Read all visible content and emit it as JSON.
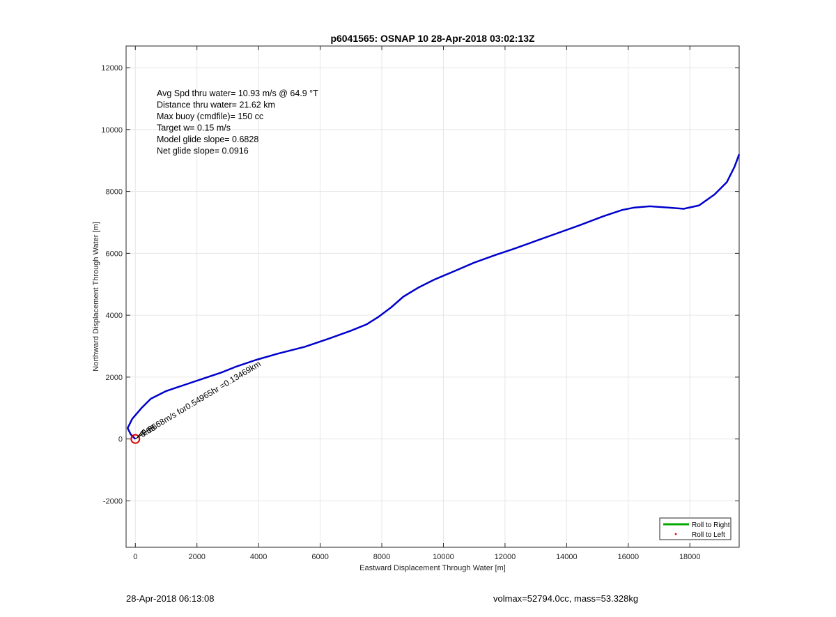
{
  "chart_data": {
    "type": "line",
    "title": "p6041565: OSNAP 10 28-Apr-2018 03:02:13Z",
    "xlabel": "Eastward Displacement Through Water [m]",
    "ylabel": "Northward Displacement Through Water [m]",
    "xlim": [
      -300,
      19600
    ],
    "ylim": [
      -3500,
      12700
    ],
    "xticks": [
      0,
      2000,
      4000,
      6000,
      8000,
      10000,
      12000,
      14000,
      16000,
      18000
    ],
    "yticks": [
      -2000,
      0,
      2000,
      4000,
      6000,
      8000,
      10000,
      12000
    ],
    "grid": true,
    "annotations": [
      "Avg Spd thru water= 10.93 m/s @  64.9 °T",
      "Distance thru water= 21.62 km",
      "Max buoy (cmdfile)= 150 cc",
      "Target w= 0.15 m/s",
      "Model glide slope= 0.6828",
      "Net glide slope= 0.0916"
    ],
    "rotated_label": "0.0668m/s for0.54965hr =0.13469km",
    "overlap_label": "0.06",
    "legend": {
      "position": "bottom-right",
      "entries": [
        {
          "label": "Roll to Right",
          "color": "#00aa00"
        },
        {
          "label": "Roll to Left",
          "color": "#dd0000"
        }
      ]
    },
    "start_marker": {
      "x": 0,
      "y": 0
    },
    "series": [
      {
        "color": "#0000cc",
        "points": [
          [
            0,
            0
          ],
          [
            -150,
            150
          ],
          [
            -250,
            350
          ],
          [
            -100,
            650
          ],
          [
            200,
            1000
          ],
          [
            500,
            1300
          ],
          [
            1000,
            1550
          ],
          [
            1600,
            1750
          ],
          [
            2200,
            1950
          ],
          [
            2800,
            2150
          ],
          [
            3300,
            2350
          ],
          [
            3900,
            2550
          ],
          [
            4600,
            2750
          ],
          [
            5500,
            2980
          ],
          [
            6300,
            3250
          ],
          [
            7000,
            3500
          ],
          [
            7500,
            3700
          ],
          [
            7900,
            3950
          ],
          [
            8300,
            4250
          ],
          [
            8700,
            4600
          ],
          [
            9200,
            4900
          ],
          [
            9700,
            5150
          ],
          [
            10300,
            5400
          ],
          [
            11000,
            5700
          ],
          [
            11700,
            5950
          ],
          [
            12300,
            6150
          ],
          [
            13000,
            6400
          ],
          [
            13700,
            6650
          ],
          [
            14400,
            6900
          ],
          [
            15200,
            7200
          ],
          [
            15800,
            7400
          ],
          [
            16200,
            7480
          ],
          [
            16700,
            7520
          ],
          [
            17300,
            7480
          ],
          [
            17800,
            7440
          ],
          [
            18300,
            7550
          ],
          [
            18800,
            7900
          ],
          [
            19200,
            8300
          ],
          [
            19450,
            8800
          ],
          [
            19600,
            9200
          ]
        ]
      }
    ]
  },
  "footer": {
    "timestamp": "28-Apr-2018 06:13:08",
    "vol_mass": "volmax=52794.0cc, mass=53.328kg"
  }
}
